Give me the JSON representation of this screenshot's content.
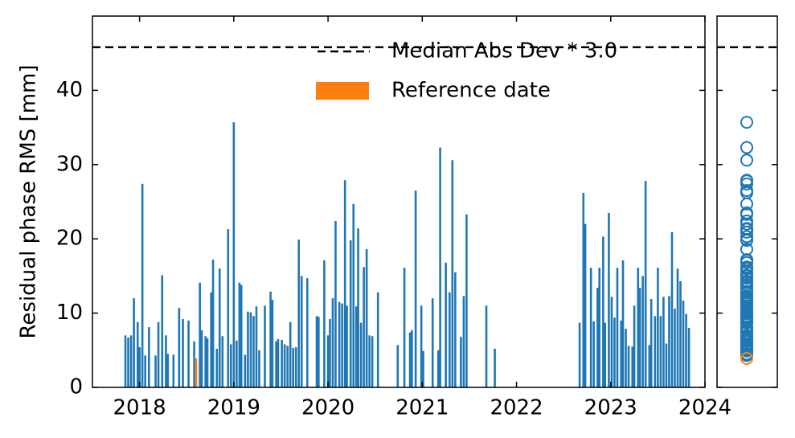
{
  "chart_data": {
    "type": "bar",
    "ylabel": "Residual phase RMS [mm]",
    "xlim": [
      2017.5,
      2024.0
    ],
    "xticks": [
      2018,
      2019,
      2020,
      2021,
      2022,
      2023,
      2024
    ],
    "ylim": [
      0,
      50
    ],
    "yticks": [
      0,
      10,
      20,
      30,
      40
    ],
    "hline": {
      "value": 45.8,
      "label": "Median Abs Dev * 3.0"
    },
    "legend": "upper center",
    "series": [
      {
        "color": "#1f77b4",
        "x": [
          2017.85,
          2017.88,
          2017.91,
          2017.94,
          2017.98,
          2018.0,
          2018.03,
          2018.06,
          2018.1,
          2018.17,
          2018.2,
          2018.24,
          2018.28,
          2018.3,
          2018.36,
          2018.42,
          2018.46,
          2018.52,
          2018.58,
          2018.64,
          2018.66,
          2018.7,
          2018.72,
          2018.76,
          2018.78,
          2018.82,
          2018.85,
          2018.88,
          2018.94,
          2018.97,
          2019.0,
          2019.03,
          2019.06,
          2019.08,
          2019.12,
          2019.15,
          2019.18,
          2019.21,
          2019.24,
          2019.27,
          2019.33,
          2019.39,
          2019.41,
          2019.45,
          2019.47,
          2019.51,
          2019.54,
          2019.57,
          2019.6,
          2019.63,
          2019.66,
          2019.69,
          2019.72,
          2019.78,
          2019.88,
          2019.9,
          2019.96,
          2020.0,
          2020.02,
          2020.05,
          2020.08,
          2020.12,
          2020.15,
          2020.18,
          2020.2,
          2020.24,
          2020.27,
          2020.3,
          2020.32,
          2020.35,
          2020.38,
          2020.41,
          2020.44,
          2020.47,
          2020.53,
          2020.74,
          2020.81,
          2020.87,
          2020.89,
          2020.93,
          2020.99,
          2021.01,
          2021.11,
          2021.17,
          2021.19,
          2021.25,
          2021.29,
          2021.32,
          2021.35,
          2021.41,
          2021.44,
          2021.47,
          2021.68,
          2021.77,
          2022.67,
          2022.71,
          2022.73,
          2022.79,
          2022.82,
          2022.86,
          2022.88,
          2022.92,
          2022.94,
          2022.98,
          2023.01,
          2023.04,
          2023.07,
          2023.11,
          2023.13,
          2023.16,
          2023.19,
          2023.23,
          2023.25,
          2023.29,
          2023.31,
          2023.34,
          2023.37,
          2023.41,
          2023.43,
          2023.47,
          2023.5,
          2023.53,
          2023.56,
          2023.59,
          2023.62,
          2023.65,
          2023.68,
          2023.71,
          2023.74,
          2023.77,
          2023.8,
          2023.83
        ],
        "values": [
          7.0,
          6.7,
          7.0,
          12.0,
          8.8,
          5.4,
          27.4,
          4.3,
          8.1,
          4.3,
          8.8,
          15.1,
          7.0,
          4.5,
          4.4,
          10.7,
          9.2,
          9.0,
          6.2,
          14.1,
          7.7,
          6.9,
          6.6,
          12.8,
          17.2,
          5.2,
          16.0,
          6.9,
          21.3,
          5.8,
          35.7,
          6.3,
          14.1,
          13.8,
          4.4,
          10.2,
          10.1,
          9.6,
          10.9,
          5.0,
          11.0,
          12.9,
          11.8,
          6.2,
          6.5,
          6.4,
          5.8,
          5.6,
          8.8,
          5.3,
          5.4,
          19.9,
          15.0,
          14.7,
          9.6,
          9.5,
          17.1,
          7.0,
          9.2,
          12.0,
          22.4,
          11.5,
          11.3,
          27.9,
          11.0,
          19.8,
          24.7,
          10.9,
          21.4,
          8.7,
          16.2,
          18.6,
          7.0,
          6.9,
          12.8,
          5.7,
          16.1,
          7.4,
          7.7,
          26.5,
          11.0,
          4.9,
          12.0,
          5.0,
          32.3,
          16.8,
          12.8,
          30.6,
          15.5,
          6.8,
          12.3,
          23.3,
          11.0,
          5.2,
          8.7,
          26.2,
          22.0,
          16.1,
          8.9,
          13.4,
          16.1,
          20.3,
          8.7,
          23.5,
          12.2,
          9.4,
          16.1,
          9.0,
          17.1,
          7.9,
          5.6,
          5.5,
          11.0,
          16.1,
          13.4,
          15.0,
          27.8,
          5.7,
          11.9,
          9.6,
          16.1,
          9.6,
          12.2,
          5.9,
          12.3,
          20.9,
          10.6,
          16.0,
          14.3,
          11.7,
          9.9,
          8.0
        ]
      },
      {
        "name": "Reference date",
        "color": "#ff7f0e",
        "x": [
          2018.6
        ],
        "values": [
          3.9
        ]
      }
    ]
  }
}
